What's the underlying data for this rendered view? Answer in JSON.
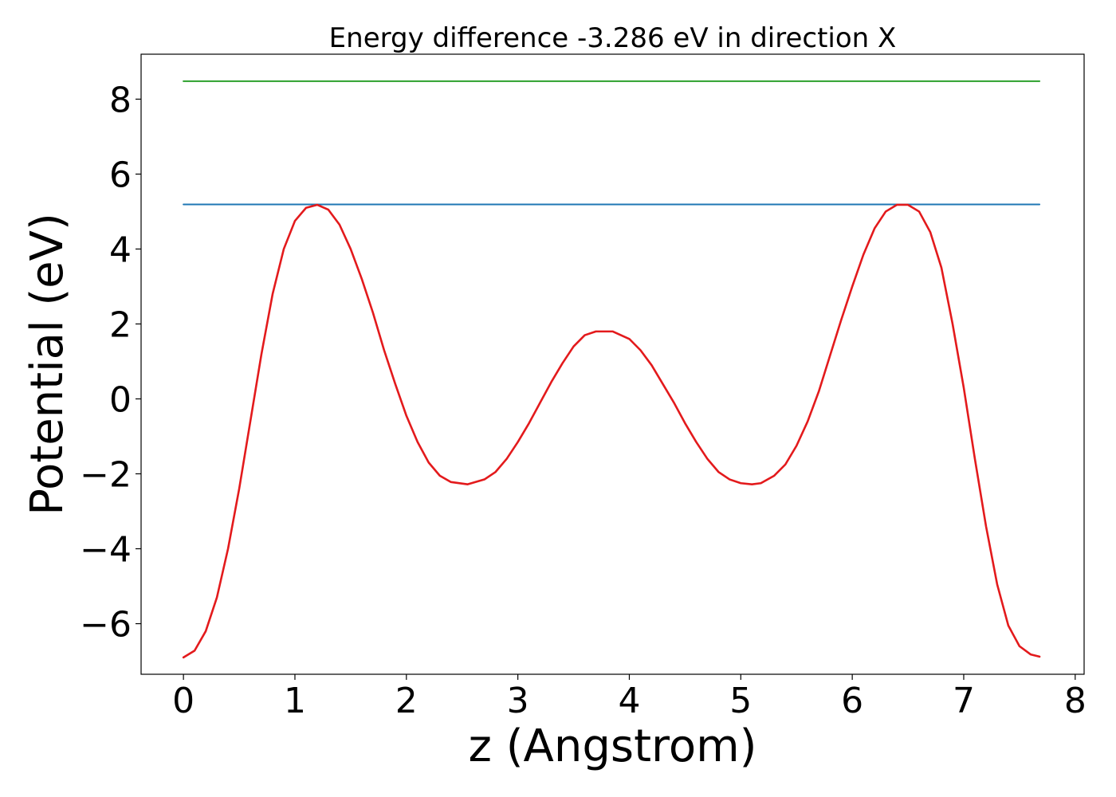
{
  "chart_data": {
    "type": "line",
    "title": "Energy difference -3.286 eV in direction X",
    "xlabel": "z (Angstrom)",
    "ylabel": "Potential (eV)",
    "xlim": [
      -0.38,
      8.08
    ],
    "ylim": [
      -7.35,
      9.2
    ],
    "xticks": [
      0,
      1,
      2,
      3,
      4,
      5,
      6,
      7,
      8
    ],
    "xtick_labels": [
      "0",
      "1",
      "2",
      "3",
      "4",
      "5",
      "6",
      "7",
      "8"
    ],
    "yticks": [
      -6,
      -4,
      -2,
      0,
      2,
      4,
      6,
      8
    ],
    "ytick_labels": [
      "−6",
      "−4",
      "−2",
      "0",
      "2",
      "4",
      "6",
      "8"
    ],
    "grid": false,
    "legend": "none",
    "series": [
      {
        "kind": "hline",
        "color": "#2ca02c",
        "x": [
          0,
          7.68
        ],
        "y": [
          8.48,
          8.48
        ]
      },
      {
        "kind": "hline",
        "color": "#1f77b4",
        "x": [
          0,
          7.68
        ],
        "y": [
          5.19,
          5.19
        ]
      },
      {
        "kind": "curve",
        "color": "#e31a1c",
        "x": [
          0,
          0.1,
          0.2,
          0.3,
          0.4,
          0.5,
          0.6,
          0.7,
          0.8,
          0.9,
          1.0,
          1.1,
          1.2,
          1.3,
          1.4,
          1.5,
          1.6,
          1.7,
          1.8,
          1.9,
          2.0,
          2.1,
          2.2,
          2.3,
          2.4,
          2.55,
          2.7,
          2.8,
          2.9,
          3.0,
          3.1,
          3.2,
          3.3,
          3.4,
          3.5,
          3.6,
          3.7,
          3.85,
          4.0,
          4.1,
          4.2,
          4.3,
          4.4,
          4.5,
          4.6,
          4.7,
          4.8,
          4.9,
          5.0,
          5.1,
          5.18,
          5.3,
          5.4,
          5.5,
          5.6,
          5.7,
          5.8,
          5.9,
          6.0,
          6.1,
          6.2,
          6.3,
          6.4,
          6.5,
          6.6,
          6.7,
          6.8,
          6.9,
          7.0,
          7.1,
          7.2,
          7.3,
          7.4,
          7.5,
          7.6,
          7.68
        ],
        "y": [
          -6.9,
          -6.72,
          -6.2,
          -5.3,
          -4.0,
          -2.4,
          -0.6,
          1.2,
          2.8,
          4.0,
          4.75,
          5.1,
          5.18,
          5.05,
          4.65,
          4.0,
          3.2,
          2.3,
          1.3,
          0.4,
          -0.45,
          -1.15,
          -1.7,
          -2.05,
          -2.22,
          -2.28,
          -2.15,
          -1.95,
          -1.6,
          -1.15,
          -0.65,
          -0.1,
          0.45,
          0.95,
          1.4,
          1.7,
          1.8,
          1.8,
          1.6,
          1.3,
          0.9,
          0.4,
          -0.1,
          -0.65,
          -1.15,
          -1.6,
          -1.95,
          -2.15,
          -2.25,
          -2.28,
          -2.25,
          -2.05,
          -1.75,
          -1.25,
          -0.6,
          0.2,
          1.15,
          2.1,
          3.0,
          3.85,
          4.55,
          5.0,
          5.18,
          5.18,
          5.0,
          4.45,
          3.5,
          2.0,
          0.3,
          -1.6,
          -3.4,
          -4.95,
          -6.05,
          -6.6,
          -6.82,
          -6.88
        ]
      }
    ]
  }
}
